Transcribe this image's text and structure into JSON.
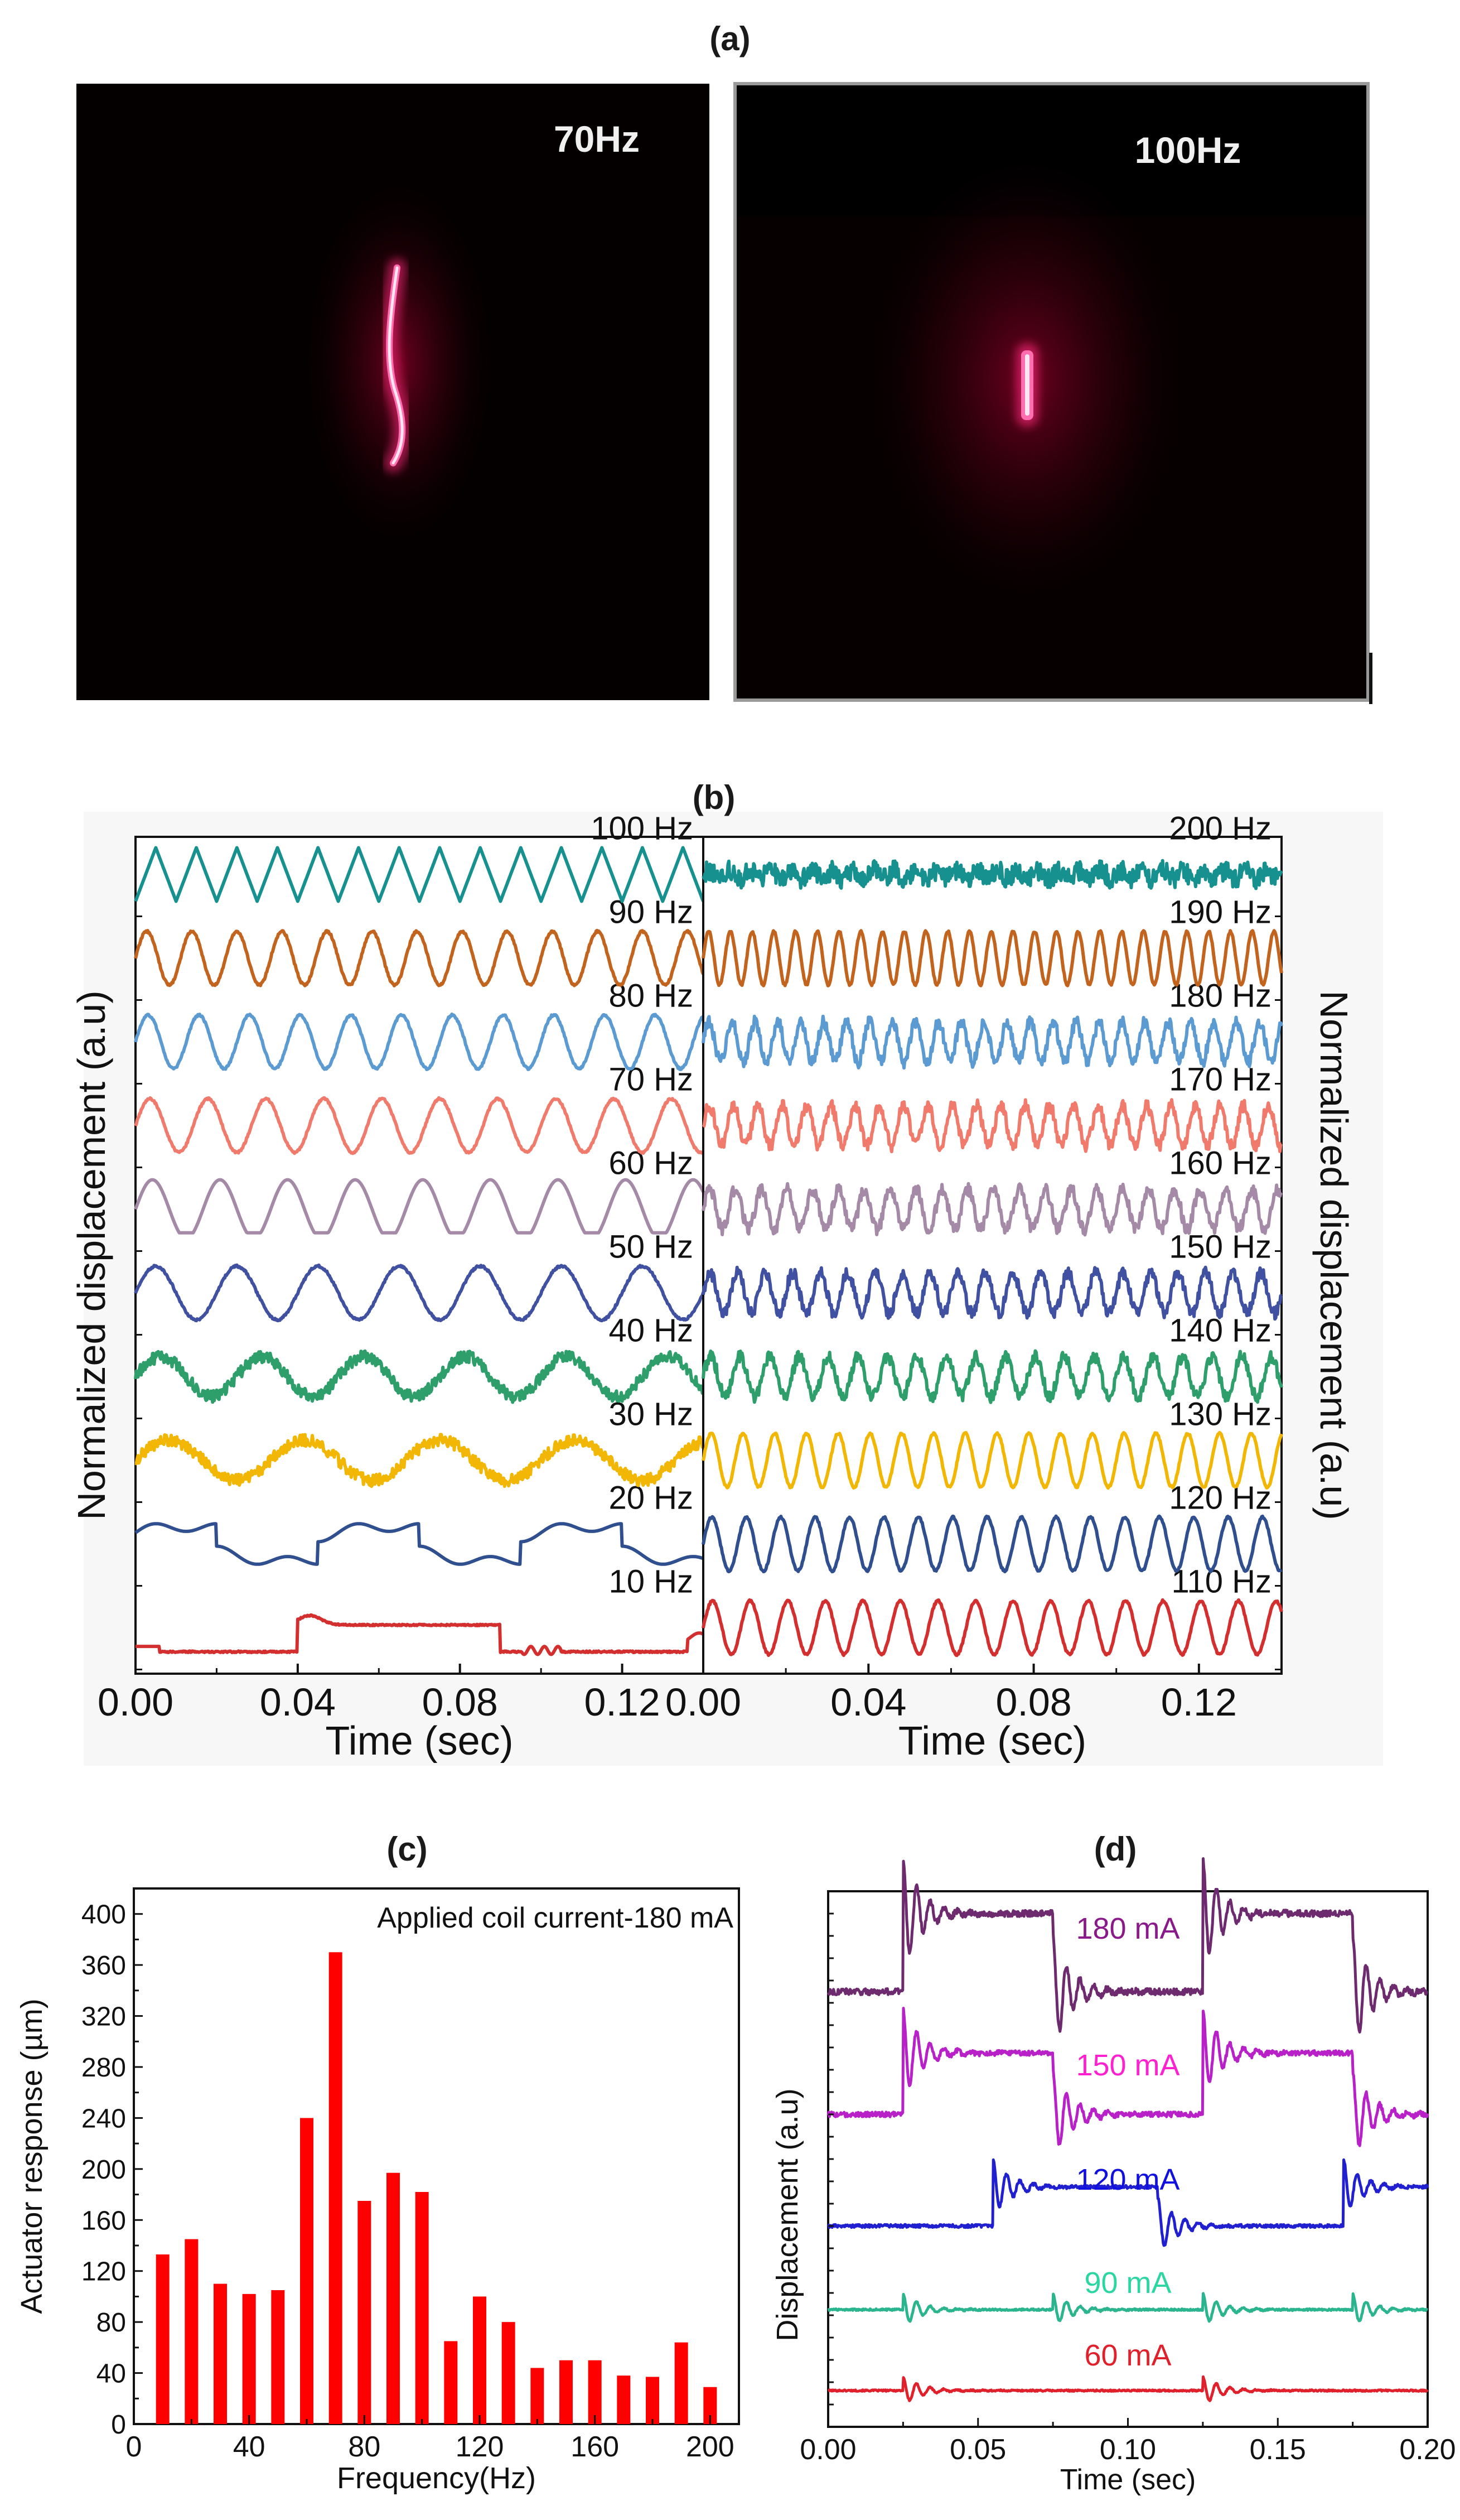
{
  "panel_a": {
    "label": "(a)",
    "images": [
      {
        "caption": "70Hz",
        "spot": "curved-vertical-streak"
      },
      {
        "caption": "100Hz",
        "spot": "short-vertical-streak"
      }
    ],
    "colors": {
      "background": "#050000",
      "laser": "#ff2a7a",
      "glow": "#c4003a"
    }
  },
  "panel_b_label": "(b)",
  "panel_c_label": "(c)",
  "panel_d_label": "(d)",
  "chart_data": [
    {
      "id": "b-left",
      "type": "line",
      "xlabel": "Time (sec)",
      "ylabel": "Normalized displacement (a.u)",
      "xlim": [
        0,
        0.14
      ],
      "xticks": [
        "0.00",
        "0.04",
        "0.08",
        "0.12"
      ],
      "stack_order": "bottom-to-top",
      "series": [
        {
          "label": "10 Hz",
          "frequency": 10,
          "color": "#d32f2f",
          "shape": "pulse"
        },
        {
          "label": "20 Hz",
          "frequency": 20,
          "color": "#2f4f8f",
          "shape": "distorted"
        },
        {
          "label": "30 Hz",
          "frequency": 30,
          "color": "#f2b705",
          "shape": "noisy-sine"
        },
        {
          "label": "40 Hz",
          "frequency": 40,
          "color": "#2e9e6a",
          "shape": "noisy-sine"
        },
        {
          "label": "50 Hz",
          "frequency": 50,
          "color": "#3f51a0",
          "shape": "sine"
        },
        {
          "label": "60 Hz",
          "frequency": 60,
          "color": "#a58aa8",
          "shape": "rounded"
        },
        {
          "label": "70 Hz",
          "frequency": 70,
          "color": "#f07a6b",
          "shape": "sine"
        },
        {
          "label": "80 Hz",
          "frequency": 80,
          "color": "#5c9bd1",
          "shape": "sine"
        },
        {
          "label": "90 Hz",
          "frequency": 90,
          "color": "#c2631e",
          "shape": "sine"
        },
        {
          "label": "100 Hz",
          "frequency": 100,
          "color": "#16918f",
          "shape": "triangle"
        }
      ]
    },
    {
      "id": "b-right",
      "type": "line",
      "xlabel": "Time (sec)",
      "ylabel": "Normalized displacement (a.u)",
      "xlim": [
        0,
        0.14
      ],
      "xticks": [
        "0.00",
        "0.04",
        "0.08",
        "0.12"
      ],
      "stack_order": "bottom-to-top",
      "series": [
        {
          "label": "110 Hz",
          "frequency": 110,
          "color": "#d32f2f",
          "shape": "sine"
        },
        {
          "label": "120 Hz",
          "frequency": 120,
          "color": "#2f4f8f",
          "shape": "sine"
        },
        {
          "label": "130 Hz",
          "frequency": 130,
          "color": "#f2b705",
          "shape": "sine"
        },
        {
          "label": "140 Hz",
          "frequency": 140,
          "color": "#2e9e6a",
          "shape": "noisy-sine"
        },
        {
          "label": "150 Hz",
          "frequency": 150,
          "color": "#3f51a0",
          "shape": "noisy-sine"
        },
        {
          "label": "160 Hz",
          "frequency": 160,
          "color": "#a58aa8",
          "shape": "noisy-sine"
        },
        {
          "label": "170 Hz",
          "frequency": 170,
          "color": "#f07a6b",
          "shape": "noisy-sine"
        },
        {
          "label": "180 Hz",
          "frequency": 180,
          "color": "#5c9bd1",
          "shape": "noisy-sine"
        },
        {
          "label": "190 Hz",
          "frequency": 190,
          "color": "#c2631e",
          "shape": "sine"
        },
        {
          "label": "200 Hz",
          "frequency": 200,
          "color": "#16918f",
          "shape": "noise"
        }
      ]
    },
    {
      "id": "c",
      "type": "bar",
      "annotation": "Applied coil current-180 mA",
      "xlabel": "Frequency(Hz)",
      "ylabel": "Actuator response (µm)",
      "xlim": [
        0,
        210
      ],
      "ylim": [
        0,
        420
      ],
      "xticks": [
        0,
        40,
        80,
        120,
        160,
        200
      ],
      "yticks": [
        0,
        40,
        80,
        120,
        160,
        200,
        240,
        280,
        320,
        360,
        400
      ],
      "bar_color": "#ff0000",
      "categories": [
        10,
        20,
        30,
        40,
        50,
        60,
        70,
        80,
        90,
        100,
        110,
        120,
        130,
        140,
        150,
        160,
        170,
        180,
        190,
        200
      ],
      "values": [
        133,
        145,
        110,
        102,
        105,
        240,
        370,
        175,
        197,
        182,
        65,
        100,
        80,
        44,
        50,
        50,
        38,
        37,
        64,
        29
      ]
    },
    {
      "id": "d",
      "type": "line",
      "xlabel": "Time (sec)",
      "ylabel": "Displacement (a.u)",
      "xlim": [
        0,
        0.2
      ],
      "xticks": [
        "0.00",
        "0.05",
        "0.10",
        "0.15",
        "0.20"
      ],
      "stack_order": "bottom-to-top",
      "series": [
        {
          "label": "60 mA",
          "color": "#e0202a",
          "label_color": "#e0202a",
          "amp": 0.25,
          "edges": [
            0.025,
            0.125
          ],
          "offset": 0
        },
        {
          "label": "90 mA",
          "color": "#2bb58e",
          "label_color": "#2bd6a0",
          "amp": 0.25,
          "edges": [
            0.025,
            0.075,
            0.125,
            0.175
          ],
          "offset": 0
        },
        {
          "label": "120 mA",
          "color": "#2020d0",
          "label_color": "#1010e0",
          "amp": 0.55,
          "edges": [
            0.055,
            0.11,
            0.172
          ],
          "offset": 0
        },
        {
          "label": "150 mA",
          "color": "#b820c8",
          "label_color": "#ff20d0",
          "amp": 1.0,
          "edges": [
            0.025,
            0.075,
            0.125,
            0.175
          ],
          "offset": 0
        },
        {
          "label": "180 mA",
          "color": "#6e2a6e",
          "label_color": "#8a1a8a",
          "amp": 1.0,
          "edges": [
            0.025,
            0.075,
            0.125,
            0.175
          ],
          "offset": 0
        }
      ]
    }
  ]
}
